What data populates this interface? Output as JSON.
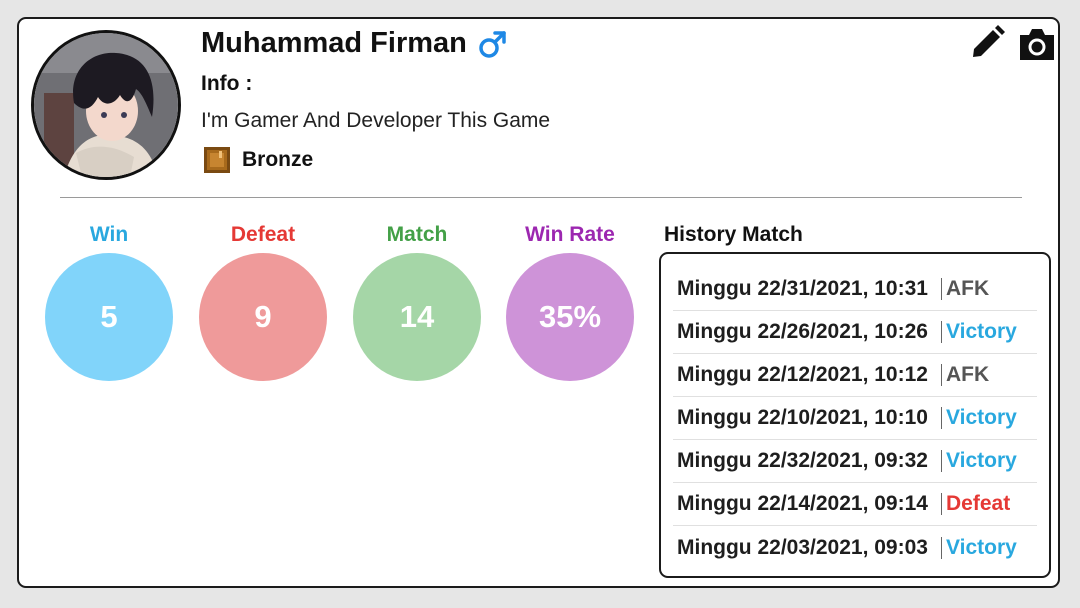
{
  "profile": {
    "name": "Muhammad Firman",
    "info_label": "Info :",
    "info_text": "I'm Gamer And Developer This Game",
    "rank": "Bronze",
    "gender_icon": "male-icon",
    "avatar_icon": "avatar"
  },
  "actions": {
    "edit_icon": "edit-icon",
    "camera_icon": "camera-icon"
  },
  "stats": [
    {
      "label": "Win",
      "value": "5",
      "label_color": "#29a8df",
      "circle_color": "#81d4fa"
    },
    {
      "label": "Defeat",
      "value": "9",
      "label_color": "#e53935",
      "circle_color": "#ef9a9a"
    },
    {
      "label": "Match",
      "value": "14",
      "label_color": "#43a047",
      "circle_color": "#a5d6a7"
    },
    {
      "label": "Win Rate",
      "value": "35%",
      "label_color": "#9c27b0",
      "circle_color": "#ce93d8"
    }
  ],
  "history": {
    "title": "History Match",
    "rows": [
      {
        "date": "Minggu 22/31/2021, 10:31",
        "result": "AFK",
        "color": "#555555"
      },
      {
        "date": "Minggu 22/26/2021, 10:26",
        "result": "Victory",
        "color": "#29a8df"
      },
      {
        "date": "Minggu 22/12/2021, 10:12",
        "result": "AFK",
        "color": "#555555"
      },
      {
        "date": "Minggu 22/10/2021, 10:10",
        "result": "Victory",
        "color": "#29a8df"
      },
      {
        "date": "Minggu 22/32/2021, 09:32",
        "result": "Victory",
        "color": "#29a8df"
      },
      {
        "date": "Minggu 22/14/2021, 09:14",
        "result": "Defeat",
        "color": "#e53935"
      },
      {
        "date": "Minggu 22/03/2021, 09:03",
        "result": "Victory",
        "color": "#29a8df"
      }
    ]
  }
}
